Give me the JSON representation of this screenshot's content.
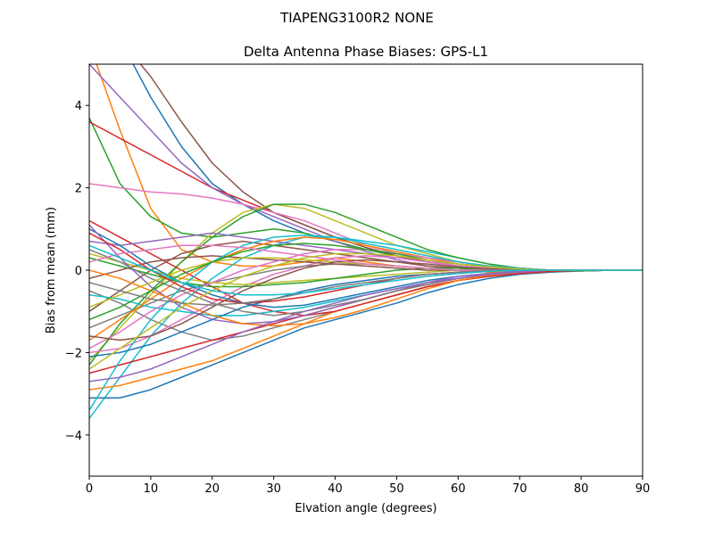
{
  "figure": {
    "suptitle": "TIAPENG3100R2   NONE"
  },
  "chart_data": {
    "type": "line",
    "title": "Delta Antenna Phase Biases: GPS-L1",
    "xlabel": "Elvation angle (degrees)",
    "ylabel": "Bias from mean (mm)",
    "xlim": [
      0,
      90
    ],
    "ylim": [
      -5,
      5
    ],
    "xticks": [
      0,
      10,
      20,
      30,
      40,
      50,
      60,
      70,
      80,
      90
    ],
    "xtick_labels": [
      "0",
      "10",
      "20",
      "30",
      "40",
      "50",
      "60",
      "70",
      "80",
      "90"
    ],
    "yticks": [
      -4,
      -2,
      0,
      2,
      4
    ],
    "ytick_labels": [
      "−4",
      "−2",
      "0",
      "2",
      "4"
    ],
    "grid": false,
    "legend": false,
    "colors": [
      "#1f77b4",
      "#ff7f0e",
      "#2ca02c",
      "#d62728",
      "#9467bd",
      "#8c564b",
      "#e377c2",
      "#7f7f7f",
      "#bcbd22",
      "#17becf"
    ],
    "x": [
      0,
      5,
      10,
      15,
      20,
      25,
      30,
      35,
      40,
      45,
      50,
      55,
      60,
      65,
      70,
      75,
      80,
      85,
      90
    ],
    "series": [
      {
        "values": [
          7.0,
          5.6,
          4.2,
          3.0,
          2.1,
          1.6,
          1.2,
          0.9,
          0.7,
          0.5,
          0.35,
          0.2,
          0.1,
          0.05,
          0.02,
          0.0,
          -0.02,
          0.0,
          0.0
        ]
      },
      {
        "values": [
          5.5,
          3.4,
          1.5,
          0.5,
          0.2,
          0.1,
          0.1,
          0.2,
          0.3,
          0.2,
          0.1,
          0.05,
          0.0,
          -0.05,
          -0.05,
          -0.02,
          0.0,
          0.0,
          0.0
        ]
      },
      {
        "values": [
          3.7,
          2.1,
          1.3,
          0.9,
          0.8,
          0.9,
          1.0,
          0.9,
          0.7,
          0.5,
          0.35,
          0.2,
          0.1,
          0.0,
          -0.02,
          -0.02,
          0.0,
          0.0,
          0.0
        ]
      },
      {
        "values": [
          3.6,
          3.2,
          2.8,
          2.4,
          2.0,
          1.7,
          1.4,
          1.1,
          0.8,
          0.55,
          0.35,
          0.2,
          0.1,
          0.03,
          0.0,
          -0.02,
          -0.02,
          0.0,
          0.0
        ]
      },
      {
        "values": [
          5.0,
          4.2,
          3.4,
          2.6,
          2.0,
          1.6,
          1.3,
          1.0,
          0.7,
          0.45,
          0.25,
          0.1,
          0.05,
          0.0,
          0.0,
          0.0,
          0.0,
          0.0,
          0.0
        ]
      },
      {
        "values": [
          6.5,
          5.6,
          4.7,
          3.6,
          2.6,
          1.9,
          1.4,
          1.1,
          0.8,
          0.55,
          0.35,
          0.2,
          0.1,
          0.05,
          0.02,
          0.0,
          0.0,
          0.0,
          0.0
        ]
      },
      {
        "values": [
          2.1,
          2.0,
          1.9,
          1.85,
          1.75,
          1.6,
          1.4,
          1.2,
          0.9,
          0.6,
          0.4,
          0.25,
          0.1,
          0.05,
          0.0,
          -0.02,
          0.0,
          0.0,
          0.0
        ]
      },
      {
        "values": [
          -0.5,
          -0.8,
          -1.2,
          -1.5,
          -1.7,
          -1.6,
          -1.4,
          -1.2,
          -1.0,
          -0.8,
          -0.6,
          -0.4,
          -0.25,
          -0.15,
          -0.08,
          -0.05,
          -0.02,
          0.0,
          0.0
        ]
      },
      {
        "values": [
          -2.2,
          -1.4,
          -0.6,
          0.2,
          0.9,
          1.4,
          1.6,
          1.5,
          1.2,
          0.9,
          0.6,
          0.4,
          0.2,
          0.1,
          0.05,
          0.0,
          0.0,
          0.0,
          0.0
        ]
      },
      {
        "values": [
          -3.6,
          -2.6,
          -1.6,
          -0.8,
          -0.2,
          0.3,
          0.6,
          0.8,
          0.8,
          0.7,
          0.6,
          0.45,
          0.3,
          0.15,
          0.05,
          0.0,
          0.0,
          0.0,
          0.0
        ]
      },
      {
        "values": [
          -3.1,
          -3.1,
          -2.9,
          -2.6,
          -2.3,
          -2.0,
          -1.7,
          -1.4,
          -1.2,
          -1.0,
          -0.8,
          -0.55,
          -0.35,
          -0.2,
          -0.1,
          -0.05,
          0.0,
          0.0,
          0.0
        ]
      },
      {
        "values": [
          -2.9,
          -2.8,
          -2.6,
          -2.4,
          -2.2,
          -1.9,
          -1.6,
          -1.3,
          -1.0,
          -0.8,
          -0.6,
          -0.4,
          -0.25,
          -0.15,
          -0.08,
          -0.03,
          0.0,
          0.0,
          0.0
        ]
      },
      {
        "values": [
          -2.3,
          -1.3,
          -0.5,
          0.2,
          0.8,
          1.3,
          1.6,
          1.6,
          1.4,
          1.1,
          0.8,
          0.5,
          0.3,
          0.15,
          0.05,
          0.0,
          -0.02,
          0.0,
          0.0
        ]
      },
      {
        "values": [
          1.2,
          0.8,
          0.4,
          0.0,
          -0.4,
          -0.8,
          -1.0,
          -1.1,
          -1.0,
          -0.8,
          -0.6,
          -0.4,
          -0.25,
          -0.15,
          -0.08,
          -0.03,
          0.0,
          0.0,
          0.0
        ]
      },
      {
        "values": [
          0.7,
          0.6,
          0.7,
          0.8,
          0.9,
          0.8,
          0.7,
          0.6,
          0.5,
          0.4,
          0.3,
          0.2,
          0.1,
          0.05,
          0.0,
          0.0,
          0.0,
          0.0,
          0.0
        ]
      },
      {
        "values": [
          -1.0,
          -0.5,
          0.0,
          0.4,
          0.6,
          0.7,
          0.6,
          0.5,
          0.4,
          0.3,
          0.2,
          0.1,
          0.05,
          0.0,
          0.0,
          0.0,
          0.0,
          0.0,
          0.0
        ]
      },
      {
        "values": [
          -2.0,
          -1.9,
          -1.6,
          -1.2,
          -0.8,
          -0.4,
          -0.1,
          0.1,
          0.3,
          0.35,
          0.3,
          0.2,
          0.1,
          0.05,
          0.0,
          0.0,
          0.0,
          0.0,
          0.0
        ]
      },
      {
        "values": [
          -1.4,
          -1.1,
          -0.8,
          -0.5,
          -0.3,
          -0.15,
          0.0,
          0.1,
          0.15,
          0.15,
          0.1,
          0.05,
          0.0,
          0.0,
          -0.02,
          0.0,
          0.0,
          0.0,
          0.0
        ]
      },
      {
        "values": [
          0.4,
          0.2,
          0.0,
          -0.2,
          -0.3,
          -0.35,
          -0.3,
          -0.25,
          -0.2,
          -0.15,
          -0.1,
          -0.05,
          0.0,
          0.0,
          0.0,
          0.0,
          0.0,
          0.0,
          0.0
        ]
      },
      {
        "values": [
          -0.6,
          -0.7,
          -0.9,
          -1.0,
          -1.1,
          -1.1,
          -1.0,
          -0.9,
          -0.75,
          -0.6,
          -0.45,
          -0.3,
          -0.2,
          -0.1,
          -0.05,
          0.0,
          0.0,
          0.0,
          0.0
        ]
      },
      {
        "values": [
          1.0,
          0.6,
          0.1,
          -0.3,
          -0.6,
          -0.8,
          -0.9,
          -0.85,
          -0.7,
          -0.55,
          -0.4,
          -0.25,
          -0.15,
          -0.08,
          -0.03,
          0.0,
          0.0,
          0.0,
          0.0
        ]
      },
      {
        "values": [
          -1.7,
          -1.2,
          -0.7,
          -0.2,
          0.2,
          0.5,
          0.7,
          0.8,
          0.75,
          0.6,
          0.45,
          0.3,
          0.15,
          0.08,
          0.03,
          0.0,
          0.0,
          0.0,
          0.0
        ]
      },
      {
        "values": [
          0.3,
          0.1,
          -0.1,
          -0.3,
          -0.4,
          -0.4,
          -0.35,
          -0.3,
          -0.2,
          -0.1,
          0.0,
          0.05,
          0.05,
          0.03,
          0.0,
          0.0,
          0.0,
          0.0,
          0.0
        ]
      },
      {
        "values": [
          -2.5,
          -2.3,
          -2.1,
          -1.9,
          -1.7,
          -1.5,
          -1.3,
          -1.1,
          -0.9,
          -0.7,
          -0.5,
          -0.35,
          -0.2,
          -0.1,
          -0.05,
          0.0,
          0.0,
          0.0,
          0.0
        ]
      },
      {
        "values": [
          1.1,
          0.3,
          -0.4,
          -0.9,
          -1.2,
          -1.3,
          -1.25,
          -1.1,
          -0.9,
          -0.7,
          -0.5,
          -0.3,
          -0.15,
          -0.08,
          -0.03,
          0.0,
          0.0,
          0.0,
          0.0
        ]
      },
      {
        "values": [
          -0.2,
          0.0,
          0.2,
          0.3,
          0.35,
          0.3,
          0.25,
          0.2,
          0.15,
          0.1,
          0.05,
          0.0,
          0.0,
          0.0,
          0.0,
          0.0,
          0.0,
          0.0,
          0.0
        ]
      },
      {
        "values": [
          -1.9,
          -1.5,
          -1.0,
          -0.6,
          -0.3,
          0.0,
          0.2,
          0.4,
          0.5,
          0.5,
          0.4,
          0.3,
          0.2,
          0.1,
          0.05,
          0.0,
          0.0,
          0.0,
          0.0
        ]
      },
      {
        "values": [
          0.5,
          0.2,
          -0.2,
          -0.5,
          -0.8,
          -1.0,
          -1.1,
          -1.0,
          -0.85,
          -0.7,
          -0.5,
          -0.35,
          -0.2,
          -0.1,
          -0.05,
          0.0,
          0.0,
          0.0,
          0.0
        ]
      },
      {
        "values": [
          -0.9,
          -0.6,
          -0.3,
          0.0,
          0.2,
          0.3,
          0.3,
          0.25,
          0.2,
          0.15,
          0.1,
          0.05,
          0.0,
          0.0,
          0.0,
          0.0,
          0.0,
          0.0,
          0.0
        ]
      },
      {
        "values": [
          -3.4,
          -2.2,
          -1.2,
          -0.4,
          0.2,
          0.6,
          0.8,
          0.85,
          0.8,
          0.65,
          0.5,
          0.35,
          0.2,
          0.1,
          0.05,
          0.0,
          0.0,
          0.0,
          0.0
        ]
      },
      {
        "values": [
          -2.1,
          -2.0,
          -1.8,
          -1.5,
          -1.2,
          -0.9,
          -0.7,
          -0.5,
          -0.35,
          -0.25,
          -0.15,
          -0.1,
          -0.05,
          0.0,
          0.0,
          0.0,
          0.0,
          0.0,
          0.0
        ]
      },
      {
        "values": [
          0.0,
          -0.2,
          -0.5,
          -0.8,
          -1.1,
          -1.3,
          -1.35,
          -1.3,
          -1.15,
          -0.95,
          -0.7,
          -0.45,
          -0.25,
          -0.12,
          -0.05,
          0.0,
          0.0,
          0.0,
          0.0
        ]
      },
      {
        "values": [
          -1.2,
          -0.9,
          -0.5,
          -0.1,
          0.2,
          0.45,
          0.6,
          0.65,
          0.6,
          0.5,
          0.4,
          0.25,
          0.15,
          0.08,
          0.03,
          0.0,
          0.0,
          0.0,
          0.0
        ]
      },
      {
        "values": [
          0.9,
          0.5,
          0.0,
          -0.4,
          -0.7,
          -0.8,
          -0.75,
          -0.65,
          -0.5,
          -0.35,
          -0.2,
          -0.1,
          -0.05,
          0.0,
          0.0,
          0.0,
          0.0,
          0.0,
          0.0
        ]
      },
      {
        "values": [
          -2.7,
          -2.6,
          -2.4,
          -2.1,
          -1.8,
          -1.5,
          -1.25,
          -1.0,
          -0.8,
          -0.6,
          -0.45,
          -0.3,
          -0.2,
          -0.1,
          -0.05,
          0.0,
          0.0,
          0.0,
          0.0
        ]
      },
      {
        "values": [
          -1.6,
          -1.7,
          -1.6,
          -1.3,
          -0.9,
          -0.5,
          -0.2,
          0.05,
          0.2,
          0.25,
          0.2,
          0.15,
          0.08,
          0.03,
          0.0,
          0.0,
          0.0,
          0.0,
          0.0
        ]
      },
      {
        "values": [
          0.2,
          0.4,
          0.5,
          0.6,
          0.6,
          0.55,
          0.45,
          0.35,
          0.25,
          0.15,
          0.1,
          0.05,
          0.0,
          0.0,
          0.0,
          0.0,
          0.0,
          0.0,
          0.0
        ]
      },
      {
        "values": [
          -0.3,
          -0.5,
          -0.7,
          -0.8,
          -0.85,
          -0.8,
          -0.7,
          -0.55,
          -0.4,
          -0.3,
          -0.2,
          -0.1,
          -0.05,
          0.0,
          0.0,
          0.0,
          0.0,
          0.0,
          0.0
        ]
      },
      {
        "values": [
          -2.4,
          -1.9,
          -1.4,
          -0.9,
          -0.5,
          -0.15,
          0.1,
          0.3,
          0.4,
          0.4,
          0.35,
          0.25,
          0.15,
          0.08,
          0.03,
          0.0,
          0.0,
          0.0,
          0.0
        ]
      },
      {
        "values": [
          0.6,
          0.3,
          0.0,
          -0.3,
          -0.5,
          -0.6,
          -0.6,
          -0.55,
          -0.45,
          -0.35,
          -0.25,
          -0.15,
          -0.08,
          -0.03,
          0.0,
          0.0,
          0.0,
          0.0,
          0.0
        ]
      }
    ]
  }
}
